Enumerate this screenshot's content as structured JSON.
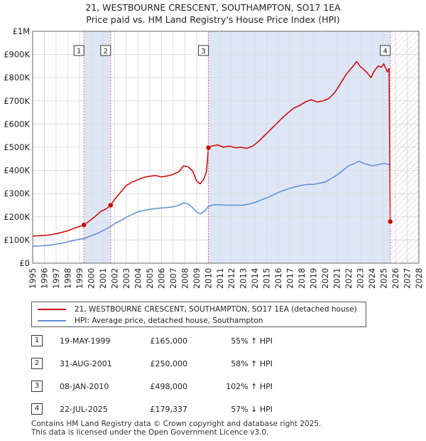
{
  "title_line1": "21, WESTBOURNE CRESCENT, SOUTHAMPTON, SO17 1EA",
  "title_line2": "Price paid vs. HM Land Registry's House Price Index (HPI)",
  "colors": {
    "price_line": "#cc0000",
    "hpi_line": "#5b8ed6",
    "shade": "#dde6f7",
    "marker_line": "#e07070",
    "grid": "#dddddd"
  },
  "chart_data": {
    "type": "line",
    "title": "21, WESTBOURNE CRESCENT, SOUTHAMPTON, SO17 1EA — Price paid vs. HM Land Registry's House Price Index (HPI)",
    "xlim": [
      1995,
      2028
    ],
    "ylim": [
      0,
      1000000
    ],
    "x_ticks": [
      1995,
      1996,
      1997,
      1998,
      1999,
      2000,
      2001,
      2002,
      2003,
      2004,
      2005,
      2006,
      2007,
      2008,
      2009,
      2010,
      2011,
      2012,
      2013,
      2014,
      2015,
      2016,
      2017,
      2018,
      2019,
      2020,
      2021,
      2022,
      2023,
      2024,
      2025,
      2026,
      2027,
      2028
    ],
    "y_ticks": [
      {
        "value": 0,
        "label": "£0"
      },
      {
        "value": 100000,
        "label": "£100K"
      },
      {
        "value": 200000,
        "label": "£200K"
      },
      {
        "value": 300000,
        "label": "£300K"
      },
      {
        "value": 400000,
        "label": "£400K"
      },
      {
        "value": 500000,
        "label": "£500K"
      },
      {
        "value": 600000,
        "label": "£600K"
      },
      {
        "value": 700000,
        "label": "£700K"
      },
      {
        "value": 800000,
        "label": "£800K"
      },
      {
        "value": 900000,
        "label": "£900K"
      },
      {
        "value": 1000000,
        "label": "£1M"
      }
    ],
    "shaded_spans": [
      [
        1999.38,
        2001.66
      ],
      [
        2010.02,
        2025.55
      ]
    ],
    "future_hatch_from": 2025.55,
    "series": [
      {
        "name": "21, WESTBOURNE CRESCENT, SOUTHAMPTON, SO17 1EA (detached house)",
        "color": "#cc0000",
        "points": [
          [
            1995.0,
            117000
          ],
          [
            1995.5,
            118000
          ],
          [
            1996.0,
            120000
          ],
          [
            1996.5,
            122000
          ],
          [
            1997.0,
            127000
          ],
          [
            1997.5,
            133000
          ],
          [
            1998.0,
            140000
          ],
          [
            1998.5,
            150000
          ],
          [
            1999.0,
            158000
          ],
          [
            1999.38,
            165000
          ],
          [
            1999.8,
            180000
          ],
          [
            2000.3,
            200000
          ],
          [
            2000.8,
            222000
          ],
          [
            2001.3,
            235000
          ],
          [
            2001.66,
            250000
          ],
          [
            2002.0,
            275000
          ],
          [
            2002.5,
            305000
          ],
          [
            2003.0,
            335000
          ],
          [
            2003.5,
            350000
          ],
          [
            2004.0,
            360000
          ],
          [
            2004.5,
            370000
          ],
          [
            2005.0,
            375000
          ],
          [
            2005.5,
            378000
          ],
          [
            2006.0,
            372000
          ],
          [
            2006.5,
            376000
          ],
          [
            2007.0,
            383000
          ],
          [
            2007.5,
            395000
          ],
          [
            2007.9,
            420000
          ],
          [
            2008.3,
            415000
          ],
          [
            2008.7,
            395000
          ],
          [
            2009.0,
            355000
          ],
          [
            2009.3,
            342000
          ],
          [
            2009.6,
            360000
          ],
          [
            2009.85,
            395000
          ],
          [
            2010.02,
            498000
          ],
          [
            2010.3,
            505000
          ],
          [
            2010.8,
            510000
          ],
          [
            2011.3,
            500000
          ],
          [
            2011.8,
            505000
          ],
          [
            2012.3,
            498000
          ],
          [
            2012.8,
            500000
          ],
          [
            2013.3,
            495000
          ],
          [
            2013.8,
            505000
          ],
          [
            2014.3,
            525000
          ],
          [
            2014.8,
            550000
          ],
          [
            2015.3,
            575000
          ],
          [
            2015.8,
            600000
          ],
          [
            2016.3,
            625000
          ],
          [
            2016.8,
            648000
          ],
          [
            2017.3,
            668000
          ],
          [
            2017.8,
            680000
          ],
          [
            2018.3,
            695000
          ],
          [
            2018.8,
            705000
          ],
          [
            2019.3,
            695000
          ],
          [
            2019.8,
            700000
          ],
          [
            2020.3,
            710000
          ],
          [
            2020.8,
            735000
          ],
          [
            2021.3,
            775000
          ],
          [
            2021.8,
            815000
          ],
          [
            2022.3,
            845000
          ],
          [
            2022.7,
            870000
          ],
          [
            2022.95,
            850000
          ],
          [
            2023.3,
            835000
          ],
          [
            2023.6,
            820000
          ],
          [
            2023.9,
            800000
          ],
          [
            2024.2,
            830000
          ],
          [
            2024.5,
            850000
          ],
          [
            2024.8,
            845000
          ],
          [
            2025.0,
            860000
          ],
          [
            2025.3,
            825000
          ],
          [
            2025.45,
            840000
          ],
          [
            2025.55,
            179337
          ]
        ]
      },
      {
        "name": "HPI: Average price, detached house, Southampton",
        "color": "#5b8ed6",
        "points": [
          [
            1995.0,
            73000
          ],
          [
            1995.5,
            74000
          ],
          [
            1996.0,
            76000
          ],
          [
            1996.5,
            78000
          ],
          [
            1997.0,
            82000
          ],
          [
            1997.5,
            86000
          ],
          [
            1998.0,
            92000
          ],
          [
            1998.5,
            98000
          ],
          [
            1999.0,
            103000
          ],
          [
            1999.38,
            106000
          ],
          [
            2000.0,
            118000
          ],
          [
            2000.5,
            128000
          ],
          [
            2001.0,
            140000
          ],
          [
            2001.66,
            158000
          ],
          [
            2002.0,
            170000
          ],
          [
            2002.5,
            183000
          ],
          [
            2003.0,
            198000
          ],
          [
            2003.5,
            210000
          ],
          [
            2004.0,
            222000
          ],
          [
            2004.5,
            228000
          ],
          [
            2005.0,
            232000
          ],
          [
            2005.5,
            236000
          ],
          [
            2006.0,
            238000
          ],
          [
            2006.5,
            240000
          ],
          [
            2007.0,
            243000
          ],
          [
            2007.5,
            250000
          ],
          [
            2007.9,
            260000
          ],
          [
            2008.3,
            255000
          ],
          [
            2008.7,
            238000
          ],
          [
            2009.0,
            222000
          ],
          [
            2009.3,
            212000
          ],
          [
            2009.7,
            225000
          ],
          [
            2010.02,
            245000
          ],
          [
            2010.5,
            252000
          ],
          [
            2011.0,
            252000
          ],
          [
            2011.5,
            250000
          ],
          [
            2012.0,
            250000
          ],
          [
            2012.5,
            250000
          ],
          [
            2013.0,
            250000
          ],
          [
            2013.5,
            255000
          ],
          [
            2014.0,
            262000
          ],
          [
            2014.5,
            272000
          ],
          [
            2015.0,
            282000
          ],
          [
            2015.5,
            293000
          ],
          [
            2016.0,
            305000
          ],
          [
            2016.5,
            315000
          ],
          [
            2017.0,
            323000
          ],
          [
            2017.5,
            330000
          ],
          [
            2018.0,
            336000
          ],
          [
            2018.5,
            340000
          ],
          [
            2019.0,
            340000
          ],
          [
            2019.5,
            345000
          ],
          [
            2020.0,
            350000
          ],
          [
            2020.5,
            365000
          ],
          [
            2021.0,
            380000
          ],
          [
            2021.5,
            400000
          ],
          [
            2022.0,
            420000
          ],
          [
            2022.5,
            430000
          ],
          [
            2022.9,
            440000
          ],
          [
            2023.3,
            430000
          ],
          [
            2023.7,
            425000
          ],
          [
            2024.0,
            420000
          ],
          [
            2024.5,
            425000
          ],
          [
            2025.0,
            430000
          ],
          [
            2025.5,
            425000
          ]
        ]
      }
    ],
    "sale_markers": [
      {
        "label": "1",
        "x": 1999.38,
        "y": 165000
      },
      {
        "label": "2",
        "x": 2001.66,
        "y": 250000
      },
      {
        "label": "3",
        "x": 2010.02,
        "y": 498000
      },
      {
        "label": "4",
        "x": 2025.55,
        "y": 179337
      }
    ]
  },
  "legend": {
    "price_label": "21, WESTBOURNE CRESCENT, SOUTHAMPTON, SO17 1EA (detached house)",
    "hpi_label": "HPI: Average price, detached house, Southampton"
  },
  "sales": [
    {
      "num": "1",
      "date": "19-MAY-1999",
      "price": "£165,000",
      "hpi": "55% ↑ HPI"
    },
    {
      "num": "2",
      "date": "31-AUG-2001",
      "price": "£250,000",
      "hpi": "58% ↑ HPI"
    },
    {
      "num": "3",
      "date": "08-JAN-2010",
      "price": "£498,000",
      "hpi": "102% ↑ HPI"
    },
    {
      "num": "4",
      "date": "22-JUL-2025",
      "price": "£179,337",
      "hpi": "57% ↓ HPI"
    }
  ],
  "footer": {
    "line1": "Contains HM Land Registry data © Crown copyright and database right 2025.",
    "line2": "This data is licensed under the Open Government Licence v3.0."
  }
}
